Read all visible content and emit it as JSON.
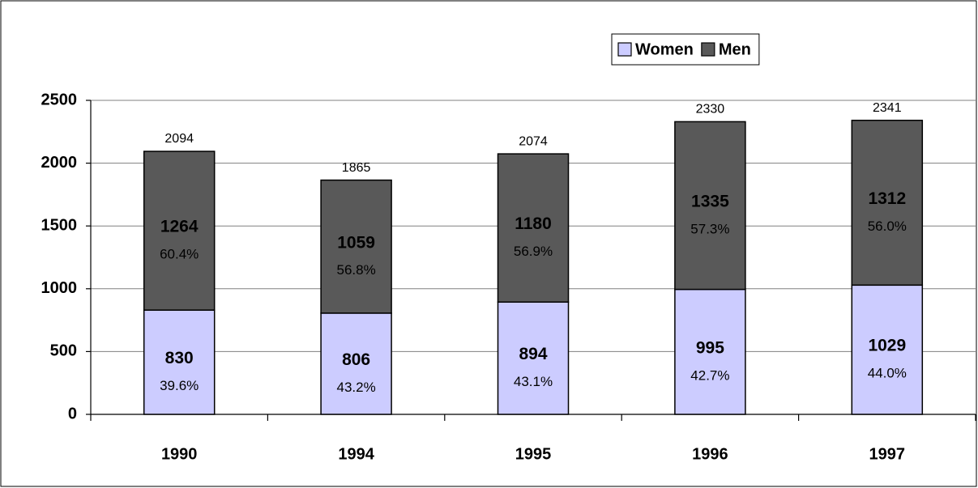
{
  "chart_data": {
    "type": "stacked_bar",
    "categories": [
      "1990",
      "1994",
      "1995",
      "1996",
      "1997"
    ],
    "series": [
      {
        "name": "Women",
        "color": "#ccccff",
        "values": [
          830,
          806,
          894,
          995,
          1029
        ],
        "percent_labels": [
          "39.6%",
          "43.2%",
          "43.1%",
          "42.7%",
          "44.0%"
        ]
      },
      {
        "name": "Men",
        "color": "#595959",
        "values": [
          1264,
          1059,
          1180,
          1335,
          1312
        ],
        "percent_labels": [
          "60.4%",
          "56.8%",
          "56.9%",
          "57.3%",
          "56.0%"
        ]
      }
    ],
    "totals": [
      2094,
      1865,
      2074,
      2330,
      2341
    ],
    "ylim": [
      0,
      2500
    ],
    "yticks": [
      0,
      500,
      1000,
      1500,
      2000,
      2500
    ],
    "grid": true,
    "legend": "top-right"
  }
}
